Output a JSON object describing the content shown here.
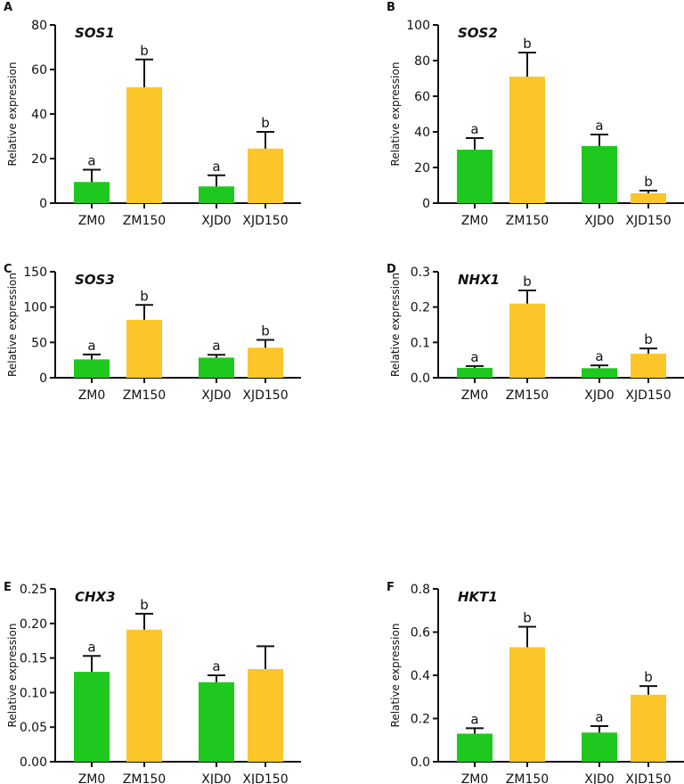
{
  "colors": {
    "control": "#1ec81e",
    "salt": "#fcc52a",
    "axis": "#111111"
  },
  "chart_data": [
    {
      "type": "bar",
      "panel": "A",
      "title": "SOS1",
      "ylabel": "Relative expression",
      "ylim": [
        0,
        80
      ],
      "yticks": [
        "0",
        "20",
        "40",
        "60",
        "80"
      ],
      "categories": [
        "ZM0",
        "ZM150",
        "XJD0",
        "XJD150"
      ],
      "values": [
        9.5,
        52,
        7.5,
        24.5
      ],
      "errors": [
        5.5,
        12.5,
        5,
        7.5
      ],
      "letters": [
        "a",
        "b",
        "a",
        "b"
      ]
    },
    {
      "type": "bar",
      "panel": "B",
      "title": "SOS2",
      "ylabel": "Relative expression",
      "ylim": [
        0,
        100
      ],
      "yticks": [
        "0",
        "20",
        "40",
        "60",
        "80",
        "100"
      ],
      "categories": [
        "ZM0",
        "ZM150",
        "XJD0",
        "XJD150"
      ],
      "values": [
        30,
        71,
        32,
        5.5
      ],
      "errors": [
        6.5,
        13.5,
        6.5,
        1.5
      ],
      "letters": [
        "a",
        "b",
        "a",
        "b"
      ]
    },
    {
      "type": "bar",
      "panel": "C",
      "title": "SOS3",
      "ylabel": "Relative expression",
      "ylim": [
        0,
        150
      ],
      "yticks": [
        "0",
        "50",
        "100",
        "150"
      ],
      "categories": [
        "ZM0",
        "ZM150",
        "XJD0",
        "XJD150"
      ],
      "values": [
        26,
        82,
        28.5,
        42.5
      ],
      "errors": [
        7,
        21,
        4,
        11
      ],
      "letters": [
        "a",
        "b",
        "a",
        "b"
      ]
    },
    {
      "type": "bar",
      "panel": "D",
      "title": "NHX1",
      "ylabel": "Relative expression",
      "ylim": [
        0,
        0.3
      ],
      "yticks": [
        "0.0",
        "0.1",
        "0.2",
        "0.3"
      ],
      "categories": [
        "ZM0",
        "ZM150",
        "XJD0",
        "XJD150"
      ],
      "values": [
        0.028,
        0.21,
        0.027,
        0.068
      ],
      "errors": [
        0.005,
        0.037,
        0.008,
        0.015
      ],
      "letters": [
        "a",
        "b",
        "a",
        "b"
      ]
    },
    {
      "type": "bar",
      "panel": "E",
      "title": "CHX3",
      "ylabel": "Relative expression",
      "ylim": [
        0,
        0.25
      ],
      "yticks": [
        "0.00",
        "0.05",
        "0.10",
        "0.15",
        "0.20",
        "0.25"
      ],
      "categories": [
        "ZM0",
        "ZM150",
        "XJD0",
        "XJD150"
      ],
      "values": [
        0.13,
        0.191,
        0.115,
        0.134
      ],
      "errors": [
        0.023,
        0.023,
        0.01,
        0.033
      ],
      "letters": [
        "a",
        "b",
        "a",
        ""
      ]
    },
    {
      "type": "bar",
      "panel": "F",
      "title": "HKT1",
      "ylabel": "Relative expression",
      "ylim": [
        0,
        0.8
      ],
      "yticks": [
        "0.0",
        "0.2",
        "0.4",
        "0.6",
        "0.8"
      ],
      "categories": [
        "ZM0",
        "ZM150",
        "XJD0",
        "XJD150"
      ],
      "values": [
        0.13,
        0.53,
        0.135,
        0.31
      ],
      "errors": [
        0.025,
        0.095,
        0.03,
        0.04
      ],
      "letters": [
        "a",
        "b",
        "a",
        "b"
      ]
    }
  ]
}
